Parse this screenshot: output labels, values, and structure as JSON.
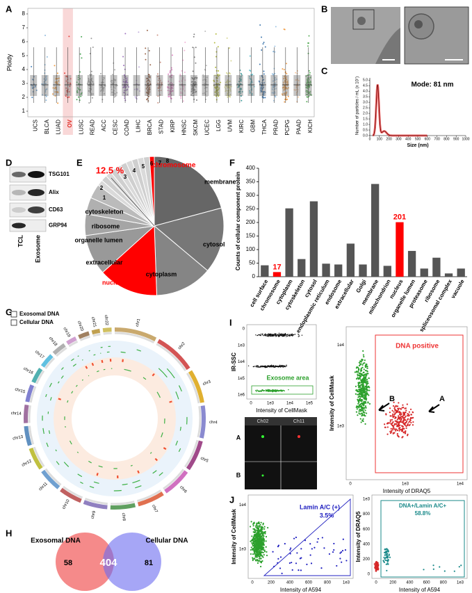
{
  "panel_labels": [
    "A",
    "B",
    "C",
    "D",
    "E",
    "F",
    "G",
    "H",
    "I",
    "J"
  ],
  "ploidy": {
    "ylabel": "Ploidy",
    "ylim": [
      0.6,
      8.4
    ],
    "yticks": [
      1,
      2,
      3,
      4,
      5,
      6,
      7,
      8
    ],
    "categories": [
      "UCS",
      "BLCA",
      "LUAD",
      "OV",
      "LUSC",
      "READ",
      "ACC",
      "CESC",
      "COAD",
      "LIHC",
      "BRCA",
      "STAD",
      "KIRP",
      "HNSC",
      "SKCM",
      "UCEC",
      "LGG",
      "UVM",
      "KIRC",
      "GBM",
      "THCA",
      "PRAD",
      "PCPG",
      "PAAD",
      "KICH"
    ],
    "colors": [
      "#2a6fb0",
      "#7aaed6",
      "#f08a1c",
      "#e0261f",
      "#2e9a3a",
      "#8a8a8a",
      "#9a9a9a",
      "#a0a0a0",
      "#8e5bb5",
      "#b9a0d6",
      "#8a4b2a",
      "#c48070",
      "#d870b8",
      "#f0a8d0",
      "#6a6a6a",
      "#b0b0b0",
      "#a8b020",
      "#d0d080",
      "#1a8a8a",
      "#50b8c8",
      "#2060a0",
      "#90bce0",
      "#f09030",
      "#f8c090",
      "#40a040"
    ],
    "highlight": "OV"
  },
  "nanoparticle": {
    "ylabel": "Number of particles / mL (x 10⁷)",
    "xlabel": "Size (nm)",
    "annotation": "Mode: 81 nm",
    "xlim": [
      0,
      1000
    ],
    "xticks": [
      0,
      100,
      200,
      300,
      400,
      500,
      600,
      700,
      800,
      900,
      1000
    ],
    "ylim": [
      0,
      5.2
    ],
    "yticks": [
      {
        "value": 0,
        "label": "0.0"
      },
      {
        "value": 0.5,
        "label": "0.5"
      },
      {
        "value": 1,
        "label": "1.0"
      },
      {
        "value": 1.5,
        "label": "1.5"
      },
      {
        "value": 2,
        "label": "2.0"
      },
      {
        "value": 2.5,
        "label": "2.5"
      },
      {
        "value": 3,
        "label": "3.0"
      },
      {
        "value": 3.5,
        "label": "3.5"
      },
      {
        "value": 4,
        "label": "4.0"
      },
      {
        "value": 4.5,
        "label": "4.5"
      },
      {
        "value": 5,
        "label": "5.0"
      }
    ]
  },
  "western": {
    "bands": [
      "TSG101",
      "Alix",
      "CD63",
      "GRP94"
    ],
    "lanes": [
      "TCL",
      "Exosome"
    ]
  },
  "pie": {
    "percent": "12.5 %",
    "chromosome": "chromosome",
    "labels": [
      "membrane",
      "cytosol",
      "cytoplasm",
      "nucleus",
      "extracellular",
      "organelle lumen",
      "ribosome",
      "cytoskeleton"
    ],
    "numbers": [
      "1",
      "2",
      "3",
      "4",
      "5",
      "6",
      "7",
      "8"
    ]
  },
  "chart_data": {
    "type": "bar",
    "ylabel": "Counts of cellular component protein",
    "categories": [
      "cell surface",
      "chromosome",
      "cytoplasm",
      "cytoskeleton",
      "cytosol",
      "endoplasmic reticulum",
      "endosome",
      "extracellular",
      "Golgi",
      "membrane",
      "mitochondrion",
      "nucleus",
      "organelle lumen",
      "proteasome",
      "ribosome",
      "spliceosomal complex",
      "vacuole"
    ],
    "values": [
      42,
      17,
      252,
      65,
      278,
      48,
      45,
      122,
      45,
      342,
      40,
      201,
      95,
      30,
      70,
      12,
      30
    ],
    "colors": [
      "#555555",
      "#ff0000",
      "#555555",
      "#555555",
      "#555555",
      "#555555",
      "#555555",
      "#555555",
      "#555555",
      "#555555",
      "#555555",
      "#ff0000",
      "#555555",
      "#555555",
      "#555555",
      "#555555",
      "#555555"
    ],
    "ylim": [
      0,
      400
    ],
    "yticks": [
      0,
      50,
      100,
      150,
      200,
      250,
      300,
      350,
      400
    ]
  },
  "circos": {
    "legend": [
      "Exosomal DNA",
      "Cellular DNA"
    ],
    "chromosomes": [
      "chr1",
      "chr2",
      "chr3",
      "chr4",
      "chr5",
      "chr6",
      "chr7",
      "chr8",
      "chr9",
      "chr10",
      "chr11",
      "chr12",
      "chr13",
      "chr14",
      "chr15",
      "chr16",
      "chr17",
      "chr18",
      "chr19",
      "chr20",
      "chr21",
      "chr22"
    ]
  },
  "venn": {
    "sets": [
      "Exosomal DNA",
      "Cellular DNA"
    ],
    "counts": [
      58,
      404,
      81
    ]
  },
  "flow_i": {
    "left": {
      "ylabel": "IR-SSC",
      "xlabel": "Intensity of CellMask",
      "gate": "Exosome area",
      "yticks": [
        "1e6",
        "1e5",
        "1e4",
        "1e3",
        "0"
      ],
      "xticks": [
        "0",
        "1e3",
        "1e4",
        "1e5"
      ]
    },
    "images": {
      "channels": [
        "Ch02",
        "Ch11"
      ],
      "rows": [
        "A",
        "B"
      ]
    },
    "right": {
      "ylabel": "Intensity of CellMask",
      "xlabel": "Intensity of DRAQ5",
      "gate": "DNA positive",
      "yticks": [
        "1e3",
        "1e4"
      ],
      "xticks": [
        "0",
        "1e3",
        "1e4"
      ],
      "pointers": [
        "A",
        "B"
      ]
    }
  },
  "flow_j": {
    "left": {
      "ylabel": "Intensity of CellMask",
      "xlabel": "Intensity of A594",
      "gate": "Lamin A/C (+)",
      "percent": "3.5%",
      "yticks": [
        "1e3",
        "1e4"
      ],
      "xticks": [
        "0",
        "200",
        "400",
        "600",
        "800",
        "1e3"
      ]
    },
    "right": {
      "ylabel": "Intensity of DRAQ5",
      "xlabel": "Intensity of A594",
      "gate": "DNA+/Lamin A/C+",
      "percent": "58.8%",
      "yticks": [
        "0",
        "200",
        "400",
        "600",
        "800",
        "1e3"
      ],
      "xticks": [
        "0",
        "200",
        "400",
        "600",
        "800",
        "1e3"
      ]
    }
  }
}
